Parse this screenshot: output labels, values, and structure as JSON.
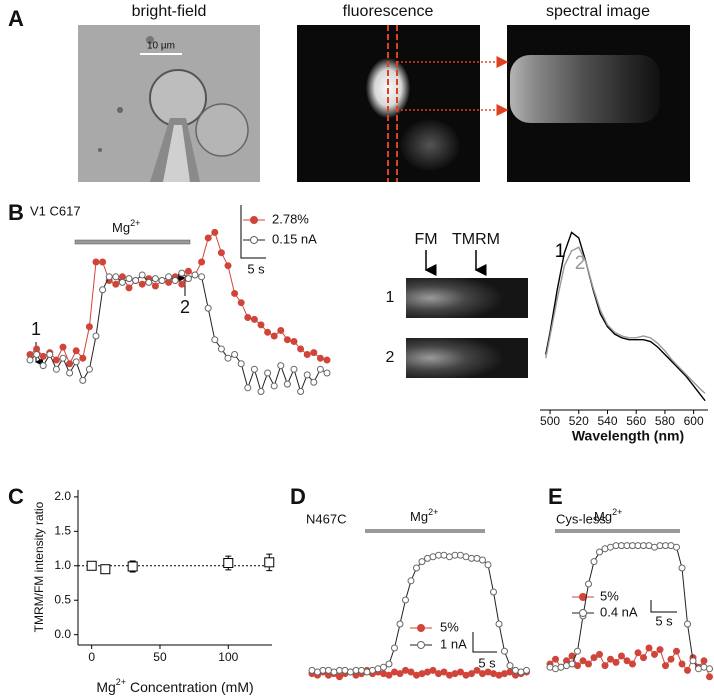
{
  "panels": {
    "A": {
      "letter": "A",
      "titles": [
        "bright-field",
        "fluorescence",
        "spectral image"
      ],
      "scale": "10 µm"
    },
    "B": {
      "letter": "B",
      "label": "V1 C617",
      "marker_1": "1",
      "marker_2": "2",
      "stim": "Mg",
      "stim_sup": "2+",
      "scale_time": "5 s",
      "images": {
        "fm": "FM",
        "tmrm": "TMRM",
        "row_1": "1",
        "row_2": "2"
      }
    },
    "C": {
      "letter": "C"
    },
    "D": {
      "letter": "D",
      "label": "N467C",
      "stim": "Mg",
      "stim_sup": "2+",
      "scale_time": "5 s"
    },
    "E": {
      "letter": "E",
      "label": "Cys-less",
      "stim": "Mg",
      "stim_sup": "2+",
      "scale_time": "5 s"
    }
  },
  "chart_data": [
    {
      "type": "line",
      "x": [
        0,
        1,
        2,
        3,
        4,
        5,
        6,
        7,
        8,
        9,
        10,
        11,
        12,
        13,
        14,
        15,
        16,
        17,
        18,
        19,
        20,
        21,
        22,
        23,
        24,
        25,
        26,
        27,
        28,
        29,
        30,
        31,
        32,
        33,
        34,
        35,
        36,
        37,
        38,
        39,
        40,
        41,
        42,
        43,
        44,
        45
      ],
      "xlim": [
        0,
        45
      ],
      "ylim": [
        0,
        1
      ],
      "series": [
        {
          "name": "2.78%",
          "color": "#d0453a",
          "marker": "filled",
          "values": [
            0.3,
            0.33,
            0.29,
            0.31,
            0.27,
            0.34,
            0.25,
            0.32,
            0.28,
            0.45,
            0.8,
            0.8,
            0.7,
            0.68,
            0.72,
            0.66,
            0.7,
            0.68,
            0.71,
            0.67,
            0.7,
            0.69,
            0.72,
            0.68,
            0.75,
            0.73,
            0.8,
            0.93,
            0.96,
            0.85,
            0.78,
            0.63,
            0.58,
            0.5,
            0.49,
            0.46,
            0.42,
            0.4,
            0.43,
            0.38,
            0.37,
            0.33,
            0.3,
            0.31,
            0.28,
            0.27
          ]
        },
        {
          "name": "0.15 nA",
          "color": "#222222",
          "marker": "open",
          "values": [
            0.27,
            0.3,
            0.24,
            0.3,
            0.22,
            0.28,
            0.2,
            0.26,
            0.16,
            0.22,
            0.4,
            0.65,
            0.72,
            0.72,
            0.69,
            0.71,
            0.7,
            0.73,
            0.69,
            0.71,
            0.7,
            0.72,
            0.7,
            0.74,
            0.71,
            0.73,
            0.72,
            0.55,
            0.38,
            0.33,
            0.28,
            0.3,
            0.25,
            0.12,
            0.22,
            0.1,
            0.2,
            0.13,
            0.24,
            0.14,
            0.22,
            0.1,
            0.19,
            0.15,
            0.22,
            0.2
          ]
        }
      ]
    },
    {
      "type": "line",
      "x": [
        497,
        500,
        505,
        510,
        515,
        520,
        525,
        530,
        535,
        540,
        545,
        550,
        555,
        560,
        565,
        570,
        575,
        580,
        585,
        590,
        595,
        600,
        605,
        608
      ],
      "xlim": [
        493,
        610
      ],
      "ylim": [
        0,
        1
      ],
      "xticks": [
        500,
        520,
        540,
        560,
        580,
        600
      ],
      "xlabel": "Wavelength (nm)",
      "series": [
        {
          "name": "1",
          "color": "#000000",
          "values": [
            0.3,
            0.42,
            0.65,
            0.85,
            0.96,
            0.93,
            0.8,
            0.65,
            0.52,
            0.45,
            0.41,
            0.39,
            0.38,
            0.38,
            0.38,
            0.37,
            0.34,
            0.3,
            0.26,
            0.22,
            0.18,
            0.13,
            0.08,
            0.05
          ]
        },
        {
          "name": "2",
          "color": "#999999",
          "values": [
            0.28,
            0.4,
            0.6,
            0.78,
            0.86,
            0.88,
            0.8,
            0.66,
            0.54,
            0.46,
            0.42,
            0.4,
            0.39,
            0.39,
            0.4,
            0.39,
            0.36,
            0.32,
            0.27,
            0.23,
            0.19,
            0.15,
            0.11,
            0.09
          ]
        }
      ]
    },
    {
      "type": "scatter",
      "x": [
        0,
        10,
        30,
        100,
        130
      ],
      "values": [
        1.0,
        0.95,
        0.99,
        1.04,
        1.05
      ],
      "errors": [
        0.03,
        0.05,
        0.08,
        0.1,
        0.12
      ],
      "xlim": [
        -10,
        132
      ],
      "ylim": [
        -0.15,
        2.1
      ],
      "xticks": [
        0,
        50,
        100
      ],
      "yticks": [
        {
          "value": 0,
          "label": "0.0"
        },
        {
          "value": 0.5,
          "label": "0.5"
        },
        {
          "value": 1,
          "label": "1.0"
        },
        {
          "value": 1.5,
          "label": "1.5"
        },
        {
          "value": 2,
          "label": "2.0"
        }
      ],
      "reference_line": 1,
      "ylabel": "TMRM/FM intensity ratio",
      "xlabel": {
        "text": "Mg",
        "sup": "2+",
        "rest": " Concentration (mM)"
      }
    },
    {
      "type": "line",
      "x": [
        0,
        1,
        2,
        3,
        4,
        5,
        6,
        7,
        8,
        9,
        10,
        11,
        12,
        13,
        14,
        15,
        16,
        17,
        18,
        19,
        20,
        21,
        22,
        23,
        24,
        25,
        26,
        27,
        28,
        29,
        30,
        31,
        32,
        33,
        34,
        35,
        36,
        37,
        38,
        39
      ],
      "xlim": [
        0,
        39
      ],
      "ylim": [
        0,
        1
      ],
      "series": [
        {
          "name": "5%",
          "color": "#d0453a",
          "marker": "filled",
          "values": [
            0.04,
            0.03,
            0.05,
            0.03,
            0.04,
            0.02,
            0.04,
            0.05,
            0.03,
            0.04,
            0.06,
            0.04,
            0.05,
            0.04,
            0.03,
            0.05,
            0.04,
            0.06,
            0.05,
            0.03,
            0.04,
            0.05,
            0.06,
            0.04,
            0.05,
            0.03,
            0.04,
            0.05,
            0.03,
            0.04,
            0.06,
            0.04,
            0.05,
            0.04,
            0.03,
            0.04,
            0.05,
            0.03,
            0.04,
            0.05
          ]
        },
        {
          "name": "1 nA",
          "color": "#222222",
          "marker": "open",
          "values": [
            0.06,
            0.05,
            0.06,
            0.06,
            0.05,
            0.06,
            0.06,
            0.05,
            0.06,
            0.06,
            0.05,
            0.06,
            0.07,
            0.08,
            0.1,
            0.2,
            0.35,
            0.5,
            0.62,
            0.7,
            0.74,
            0.76,
            0.77,
            0.78,
            0.78,
            0.77,
            0.78,
            0.78,
            0.77,
            0.76,
            0.76,
            0.75,
            0.72,
            0.55,
            0.35,
            0.18,
            0.09,
            0.06,
            0.05,
            0.06
          ]
        }
      ]
    },
    {
      "type": "line",
      "x": [
        0,
        1,
        2,
        3,
        4,
        5,
        6,
        7,
        8,
        9,
        10,
        11,
        12,
        13,
        14,
        15,
        16,
        17,
        18,
        19,
        20,
        21,
        22,
        23,
        24,
        25,
        26,
        27,
        28,
        29
      ],
      "xlim": [
        0,
        29
      ],
      "ylim": [
        0,
        1
      ],
      "series": [
        {
          "name": "5%",
          "color": "#d0453a",
          "marker": "filled",
          "values": [
            0.1,
            0.13,
            0.08,
            0.12,
            0.15,
            0.09,
            0.12,
            0.1,
            0.14,
            0.16,
            0.09,
            0.13,
            0.11,
            0.15,
            0.12,
            0.1,
            0.17,
            0.14,
            0.2,
            0.16,
            0.19,
            0.09,
            0.13,
            0.18,
            0.1,
            0.06,
            0.14,
            0.08,
            0.12,
            0.02
          ]
        },
        {
          "name": "0.4 nA",
          "color": "#222222",
          "marker": "open",
          "values": [
            0.08,
            0.07,
            0.08,
            0.09,
            0.1,
            0.18,
            0.4,
            0.6,
            0.74,
            0.8,
            0.82,
            0.83,
            0.84,
            0.84,
            0.84,
            0.84,
            0.84,
            0.84,
            0.84,
            0.83,
            0.84,
            0.84,
            0.84,
            0.83,
            0.7,
            0.35,
            0.12,
            0.07,
            0.08,
            0.07
          ]
        }
      ]
    }
  ]
}
